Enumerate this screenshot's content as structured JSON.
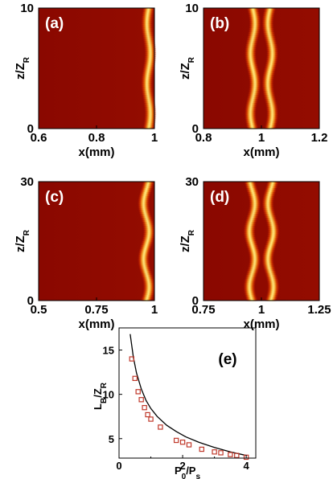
{
  "chart_data": [
    {
      "panel": "(a)",
      "type": "heatmap",
      "xlabel": "x(mm)",
      "ylabel": "z/Z_R",
      "xlim": [
        0.6,
        1.0
      ],
      "ylim": [
        0,
        10
      ],
      "x_ticks": [
        "0.6",
        "0.8",
        "1"
      ],
      "y_ticks": [
        "0",
        "10"
      ],
      "beams": [
        {
          "center_x": 0.98,
          "oscillation_amplitude": 0.006,
          "oscillation_period_z": 5.0
        }
      ],
      "colors": {
        "background": "#8b0000",
        "peak": "#ffff80"
      }
    },
    {
      "panel": "(b)",
      "type": "heatmap",
      "xlabel": "x(mm)",
      "ylabel": "z/Z_R",
      "xlim": [
        0.8,
        1.2
      ],
      "ylim": [
        0,
        10
      ],
      "x_ticks": [
        "0.8",
        "1",
        "1.2"
      ],
      "y_ticks": [
        "0",
        "10"
      ],
      "beams": [
        {
          "center_x": 0.97,
          "oscillation_amplitude": 0.008,
          "oscillation_period_z": 5.0
        },
        {
          "center_x": 1.03,
          "oscillation_amplitude": 0.008,
          "oscillation_period_z": 5.0
        }
      ],
      "colors": {
        "background": "#8b0000",
        "peak": "#ffff80"
      }
    },
    {
      "panel": "(c)",
      "type": "heatmap",
      "xlabel": "x(mm)",
      "ylabel": "z/Z_R",
      "xlim": [
        0.5,
        1.0
      ],
      "ylim": [
        0,
        30
      ],
      "x_ticks": [
        "0.5",
        "0.75",
        "1"
      ],
      "y_ticks": [
        "0",
        "30"
      ],
      "beams": [
        {
          "center_x": 0.965,
          "oscillation_amplitude": 0.012,
          "oscillation_period_z": 14.0
        }
      ],
      "colors": {
        "background": "#8b0000",
        "peak": "#ffff80"
      }
    },
    {
      "panel": "(d)",
      "type": "heatmap",
      "xlabel": "x(mm)",
      "ylabel": "z/Z_R",
      "xlim": [
        0.75,
        1.25
      ],
      "ylim": [
        0,
        30
      ],
      "x_ticks": [
        "0.75",
        "1",
        "1.25"
      ],
      "y_ticks": [
        "0",
        "30"
      ],
      "beams": [
        {
          "center_x": 0.96,
          "oscillation_amplitude": 0.012,
          "oscillation_period_z": 14.0
        },
        {
          "center_x": 1.04,
          "oscillation_amplitude": 0.012,
          "oscillation_period_z": 14.0
        }
      ],
      "colors": {
        "background": "#8b0000",
        "peak": "#ffff80"
      }
    },
    {
      "panel": "(e)",
      "type": "scatter",
      "xlabel": "P_0/P_s",
      "ylabel": "L_B/Z_R",
      "xlim": [
        0,
        4.3
      ],
      "ylim": [
        2.8,
        17.5
      ],
      "x_ticks": [
        0,
        2,
        4
      ],
      "y_ticks": [
        5,
        10,
        15
      ],
      "series": [
        {
          "kind": "curve",
          "x": [
            0.35,
            0.45,
            0.55,
            0.7,
            0.85,
            1.0,
            1.2,
            1.5,
            1.8,
            2.1,
            2.5,
            3.0,
            3.5,
            4.0
          ],
          "y": [
            16.8,
            14.2,
            12.4,
            10.6,
            9.3,
            8.4,
            7.5,
            6.5,
            5.8,
            5.2,
            4.6,
            4.0,
            3.5,
            3.1
          ]
        },
        {
          "kind": "markers",
          "marker": "square",
          "color": "#c0392b",
          "x": [
            0.4,
            0.5,
            0.6,
            0.7,
            0.8,
            0.9,
            1.0,
            1.3,
            1.8,
            2.0,
            2.2,
            2.6,
            3.0,
            3.2,
            3.5,
            3.7,
            4.0
          ],
          "y": [
            14.0,
            11.8,
            10.3,
            9.4,
            8.5,
            7.7,
            7.2,
            6.3,
            4.8,
            4.6,
            4.3,
            3.8,
            3.5,
            3.4,
            3.2,
            3.1,
            2.9
          ]
        }
      ]
    }
  ]
}
